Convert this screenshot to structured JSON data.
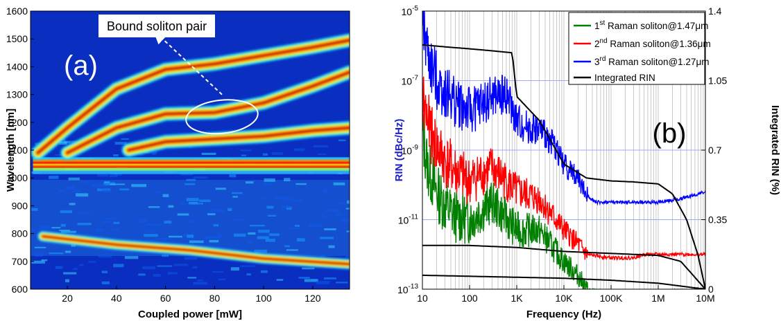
{
  "chart_data": [
    {
      "panel": "(a)",
      "type": "heatmap",
      "xlabel": "Coupled power [mW]",
      "ylabel": "Wavelength [nm]",
      "xlim": [
        5,
        135
      ],
      "ylim": [
        600,
        1600
      ],
      "xticks": [
        20,
        40,
        60,
        80,
        100,
        120
      ],
      "yticks": [
        600,
        700,
        800,
        900,
        1000,
        1100,
        1200,
        1300,
        1400,
        1500,
        1600
      ],
      "colormap": "jet",
      "annotation": {
        "text": "Bound soliton pair",
        "ellipse_center": [
          83,
          1220
        ],
        "arrow_from": [
          83,
          1300
        ],
        "arrow_to": [
          57,
          1515
        ]
      },
      "traces": [
        {
          "name": "pump band",
          "x": [
            5,
            135
          ],
          "y": [
            1050,
            1050
          ]
        },
        {
          "name": "soliton 1",
          "x": [
            8,
            20,
            40,
            60,
            80,
            100,
            120,
            135
          ],
          "y": [
            1090,
            1180,
            1320,
            1390,
            1410,
            1440,
            1470,
            1495
          ]
        },
        {
          "name": "soliton 2",
          "x": [
            20,
            40,
            60,
            80,
            100,
            120,
            135
          ],
          "y": [
            1090,
            1180,
            1230,
            1235,
            1270,
            1330,
            1380
          ]
        },
        {
          "name": "soliton 3",
          "x": [
            45,
            60,
            80,
            100,
            120,
            135
          ],
          "y": [
            1100,
            1130,
            1140,
            1150,
            1170,
            1180
          ]
        },
        {
          "name": "dispersive wave",
          "x": [
            10,
            40,
            70,
            100,
            135
          ],
          "y": [
            790,
            760,
            740,
            710,
            690
          ]
        }
      ]
    },
    {
      "panel": "(b)",
      "type": "line",
      "xscale": "log",
      "xlabel": "Frequency (Hz)",
      "ylabel": "RIN (dBc/Hz)",
      "ylabel_right": "Integrated RIN (%)",
      "xlim": [
        10,
        10000000
      ],
      "ylim_log10": [
        -13,
        -5
      ],
      "y2lim": [
        0,
        1.4
      ],
      "xticks": [
        10,
        100,
        1000,
        10000,
        100000,
        1000000,
        10000000
      ],
      "xticklabels": [
        "10",
        "100",
        "1K",
        "10K",
        "100K",
        "1M",
        "10M"
      ],
      "yticks_exp": [
        -13,
        -11,
        -9,
        -7,
        -5
      ],
      "y2ticks": [
        "0",
        "0.35",
        "0.7",
        "1.05",
        "1.4"
      ],
      "legend_position": "top-right",
      "series": [
        {
          "name": "1st Raman soliton@1.47μm",
          "label_pre": "1",
          "label_sup": "st",
          "label_post": " Raman soliton@1.47μm",
          "color": "#007f00",
          "x": [
            10,
            13,
            20,
            30,
            50,
            100,
            300,
            1000,
            3000,
            10000,
            20000,
            30000,
            50000,
            100000,
            300000,
            1000000,
            3000000,
            10000000
          ],
          "y": [
            -8.5,
            -9.5,
            -10.2,
            -10.6,
            -10.9,
            -11.0,
            -10.5,
            -11.3,
            -11.3,
            -12.2,
            -12.6,
            -13.0,
            -13.05,
            -13.1,
            -13.1,
            -13.1,
            -13.05,
            -13.0
          ]
        },
        {
          "name": "2nd Raman soliton@1.36μm",
          "label_pre": "2",
          "label_sup": "nd",
          "label_post": " Raman soliton@1.36μm",
          "color": "#ff0000",
          "x": [
            10,
            15,
            20,
            30,
            50,
            100,
            300,
            1000,
            3000,
            10000,
            20000,
            30000,
            100000,
            300000,
            500000,
            1000000,
            3000000,
            10000000
          ],
          "y": [
            -7.5,
            -8.5,
            -8.9,
            -9.3,
            -9.6,
            -9.9,
            -9.5,
            -10.2,
            -10.4,
            -11.3,
            -11.7,
            -12.0,
            -12.1,
            -12.1,
            -12.0,
            -12.0,
            -12.0,
            -12.0
          ]
        },
        {
          "name": "3rd Raman soliton@1.27μm",
          "label_pre": "3",
          "label_sup": "rd",
          "label_post": " Raman soliton@1.27μm",
          "color": "#0000ff",
          "x": [
            10,
            12,
            15,
            20,
            30,
            50,
            100,
            300,
            600,
            1000,
            2000,
            3000,
            6000,
            10000,
            20000,
            30000,
            50000,
            100000,
            300000,
            1000000,
            3000000,
            10000000
          ],
          "y": [
            -5.3,
            -6.0,
            -6.6,
            -7.0,
            -7.3,
            -7.6,
            -7.9,
            -7.5,
            -7.4,
            -8.2,
            -8.4,
            -8.4,
            -8.8,
            -9.4,
            -9.8,
            -10.3,
            -10.5,
            -10.5,
            -10.5,
            -10.5,
            -10.4,
            -10.2
          ]
        },
        {
          "name": "Integrated RIN",
          "color": "#000000",
          "x": [
            10,
            30,
            100,
            300,
            800,
            1000,
            3000,
            10000,
            30000,
            100000,
            300000,
            1000000,
            2000000,
            4000000,
            7000000,
            10000000
          ],
          "y2": [
            1.23,
            1.22,
            1.21,
            1.2,
            1.19,
            0.97,
            0.85,
            0.63,
            0.56,
            0.545,
            0.54,
            0.53,
            0.48,
            0.35,
            0.17,
            0.0
          ]
        },
        {
          "name": "Integrated RIN (2nd)",
          "legend": false,
          "color": "#000000",
          "x": [
            10,
            100,
            1000,
            10000,
            100000,
            1000000,
            3000000,
            10000000
          ],
          "y2": [
            0.22,
            0.22,
            0.21,
            0.19,
            0.18,
            0.17,
            0.14,
            0.0
          ]
        },
        {
          "name": "Integrated RIN (1st)",
          "legend": false,
          "color": "#000000",
          "x": [
            10,
            100,
            1000,
            10000,
            100000,
            1000000,
            10000000
          ],
          "y2": [
            0.07,
            0.065,
            0.06,
            0.055,
            0.045,
            0.03,
            0.0
          ]
        }
      ],
      "panel_label": "(b)"
    }
  ]
}
